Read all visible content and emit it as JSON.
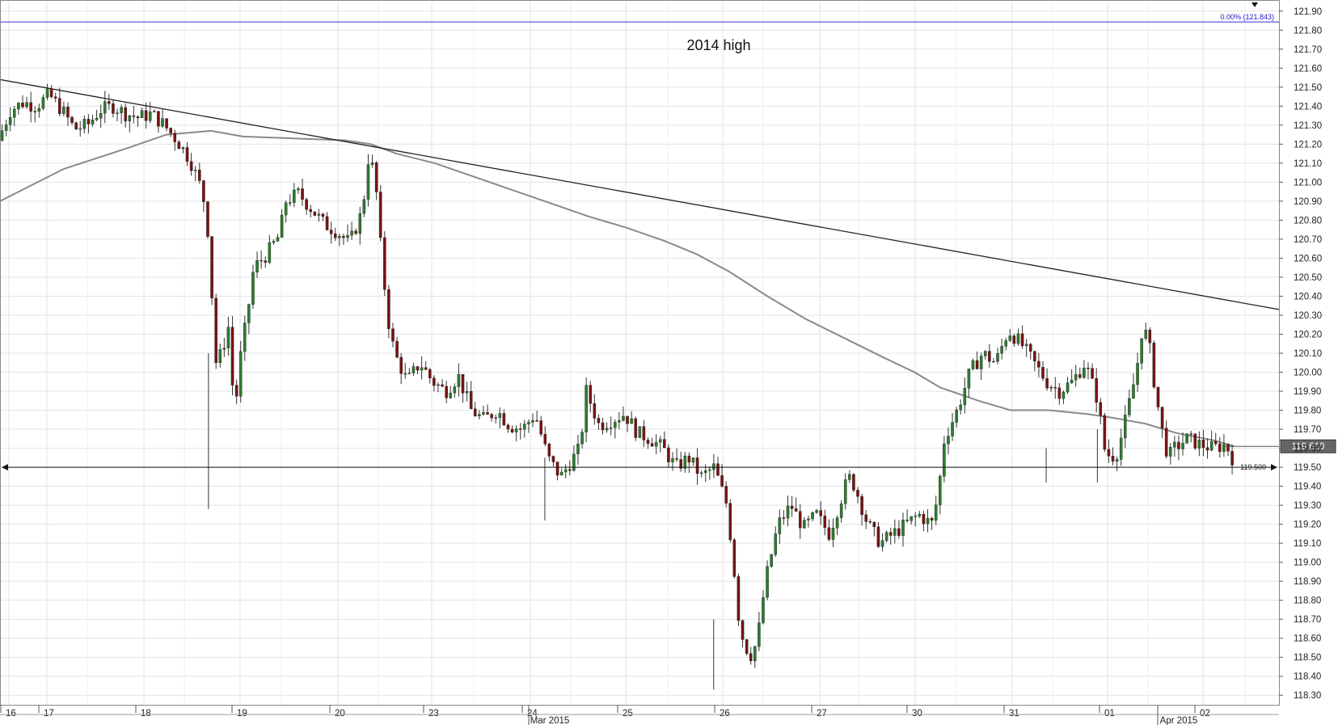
{
  "chart_data": {
    "type": "candlestick",
    "instrument_note": "",
    "y_range": [
      118.25,
      121.95
    ],
    "y_ticks": [
      "121.90",
      "121.80",
      "121.70",
      "121.60",
      "121.50",
      "121.40",
      "121.30",
      "121.20",
      "121.10",
      "121.00",
      "120.90",
      "120.80",
      "120.70",
      "120.60",
      "120.50",
      "120.40",
      "120.30",
      "120.20",
      "120.10",
      "120.00",
      "119.90",
      "119.80",
      "119.70",
      "119.60",
      "119.50",
      "119.40",
      "119.30",
      "119.20",
      "119.10",
      "119.00",
      "118.90",
      "118.80",
      "118.70",
      "118.60",
      "118.50",
      "118.40",
      "118.30"
    ],
    "x_day_labels": [
      "16",
      "17",
      "18",
      "19",
      "20",
      "23",
      "24",
      "25",
      "26",
      "27",
      "30",
      "31",
      "01",
      "02"
    ],
    "x_month_labels": [
      "Mar 2015",
      "Apr 2015"
    ],
    "annotation": "2014 high",
    "fib_label": "0.00% (121.843)",
    "fib_level": 121.843,
    "support_level": 119.5,
    "support_label": "119.500",
    "last_price": 119.61,
    "last_price_label": "119.610",
    "grid": true,
    "colors": {
      "bull": "#2e7d2e",
      "bear": "#7a1212",
      "wick": "#333333",
      "fib": "#3333cc",
      "trend": "#222222",
      "ma": "#8a8a8a",
      "grid": "#e3e3e3",
      "price_tag": "#666666"
    },
    "trendline": [
      [
        0,
        121.54
      ],
      [
        1,
        120.33
      ]
    ],
    "moving_average": [
      [
        0.0,
        120.9
      ],
      [
        0.05,
        121.07
      ],
      [
        0.1,
        121.18
      ],
      [
        0.13,
        121.25
      ],
      [
        0.165,
        121.27
      ],
      [
        0.19,
        121.24
      ],
      [
        0.23,
        121.23
      ],
      [
        0.27,
        121.22
      ],
      [
        0.29,
        121.2
      ],
      [
        0.31,
        121.15
      ],
      [
        0.34,
        121.1
      ],
      [
        0.37,
        121.03
      ],
      [
        0.4,
        120.96
      ],
      [
        0.43,
        120.89
      ],
      [
        0.46,
        120.82
      ],
      [
        0.49,
        120.76
      ],
      [
        0.52,
        120.69
      ],
      [
        0.545,
        120.62
      ],
      [
        0.57,
        120.53
      ],
      [
        0.6,
        120.4
      ],
      [
        0.63,
        120.28
      ],
      [
        0.66,
        120.18
      ],
      [
        0.69,
        120.08
      ],
      [
        0.715,
        120.0
      ],
      [
        0.735,
        119.92
      ],
      [
        0.765,
        119.85
      ],
      [
        0.79,
        119.8
      ],
      [
        0.82,
        119.8
      ],
      [
        0.85,
        119.78
      ],
      [
        0.87,
        119.76
      ],
      [
        0.895,
        119.73
      ],
      [
        0.92,
        119.68
      ],
      [
        0.95,
        119.64
      ],
      [
        0.965,
        119.61
      ]
    ],
    "path": [
      [
        0,
        121.22
      ],
      [
        0.01,
        121.38
      ],
      [
        0.02,
        121.42
      ],
      [
        0.03,
        121.4
      ],
      [
        0.04,
        121.46
      ],
      [
        0.05,
        121.38
      ],
      [
        0.06,
        121.28
      ],
      [
        0.07,
        121.3
      ],
      [
        0.08,
        121.38
      ],
      [
        0.09,
        121.4
      ],
      [
        0.1,
        121.36
      ],
      [
        0.11,
        121.34
      ],
      [
        0.12,
        121.36
      ],
      [
        0.13,
        121.3
      ],
      [
        0.14,
        121.22
      ],
      [
        0.15,
        121.12
      ],
      [
        0.16,
        120.95
      ],
      [
        0.165,
        120.7
      ],
      [
        0.17,
        120.05
      ],
      [
        0.175,
        120.1
      ],
      [
        0.18,
        120.25
      ],
      [
        0.185,
        119.78
      ],
      [
        0.19,
        120.1
      ],
      [
        0.195,
        120.3
      ],
      [
        0.2,
        120.55
      ],
      [
        0.21,
        120.62
      ],
      [
        0.22,
        120.72
      ],
      [
        0.225,
        120.9
      ],
      [
        0.235,
        120.94
      ],
      [
        0.245,
        120.86
      ],
      [
        0.255,
        120.78
      ],
      [
        0.265,
        120.74
      ],
      [
        0.275,
        120.68
      ],
      [
        0.285,
        120.85
      ],
      [
        0.29,
        121.15
      ],
      [
        0.295,
        121.02
      ],
      [
        0.3,
        120.6
      ],
      [
        0.305,
        120.28
      ],
      [
        0.31,
        120.1
      ],
      [
        0.32,
        119.95
      ],
      [
        0.33,
        120.05
      ],
      [
        0.34,
        119.95
      ],
      [
        0.35,
        119.9
      ],
      [
        0.36,
        119.98
      ],
      [
        0.37,
        119.8
      ],
      [
        0.38,
        119.75
      ],
      [
        0.39,
        119.8
      ],
      [
        0.4,
        119.72
      ],
      [
        0.41,
        119.7
      ],
      [
        0.42,
        119.78
      ],
      [
        0.43,
        119.55
      ],
      [
        0.44,
        119.45
      ],
      [
        0.45,
        119.55
      ],
      [
        0.455,
        119.6
      ],
      [
        0.46,
        119.9
      ],
      [
        0.47,
        119.72
      ],
      [
        0.48,
        119.75
      ],
      [
        0.49,
        119.78
      ],
      [
        0.5,
        119.68
      ],
      [
        0.51,
        119.65
      ],
      [
        0.52,
        119.6
      ],
      [
        0.53,
        119.5
      ],
      [
        0.54,
        119.55
      ],
      [
        0.55,
        119.45
      ],
      [
        0.56,
        119.5
      ],
      [
        0.565,
        119.4
      ],
      [
        0.57,
        119.3
      ],
      [
        0.575,
        119.0
      ],
      [
        0.58,
        118.65
      ],
      [
        0.585,
        118.55
      ],
      [
        0.59,
        118.5
      ],
      [
        0.595,
        118.65
      ],
      [
        0.6,
        118.9
      ],
      [
        0.61,
        119.2
      ],
      [
        0.62,
        119.3
      ],
      [
        0.63,
        119.18
      ],
      [
        0.64,
        119.25
      ],
      [
        0.65,
        119.15
      ],
      [
        0.66,
        119.35
      ],
      [
        0.665,
        119.45
      ],
      [
        0.67,
        119.4
      ],
      [
        0.68,
        119.2
      ],
      [
        0.69,
        119.1
      ],
      [
        0.7,
        119.15
      ],
      [
        0.71,
        119.2
      ],
      [
        0.72,
        119.25
      ],
      [
        0.73,
        119.2
      ],
      [
        0.735,
        119.35
      ],
      [
        0.74,
        119.65
      ],
      [
        0.75,
        119.8
      ],
      [
        0.76,
        120.0
      ],
      [
        0.77,
        120.1
      ],
      [
        0.78,
        120.05
      ],
      [
        0.79,
        120.22
      ],
      [
        0.8,
        120.15
      ],
      [
        0.81,
        120.05
      ],
      [
        0.82,
        119.95
      ],
      [
        0.83,
        119.9
      ],
      [
        0.84,
        119.95
      ],
      [
        0.85,
        120.05
      ],
      [
        0.86,
        119.85
      ],
      [
        0.865,
        119.6
      ],
      [
        0.87,
        119.55
      ],
      [
        0.875,
        119.58
      ],
      [
        0.88,
        119.7
      ],
      [
        0.885,
        119.85
      ],
      [
        0.89,
        120.0
      ],
      [
        0.895,
        120.25
      ],
      [
        0.9,
        120.15
      ],
      [
        0.905,
        119.9
      ],
      [
        0.91,
        119.7
      ],
      [
        0.915,
        119.55
      ],
      [
        0.92,
        119.6
      ],
      [
        0.93,
        119.65
      ],
      [
        0.94,
        119.62
      ],
      [
        0.95,
        119.6
      ],
      [
        0.96,
        119.62
      ],
      [
        0.965,
        119.55
      ]
    ]
  }
}
